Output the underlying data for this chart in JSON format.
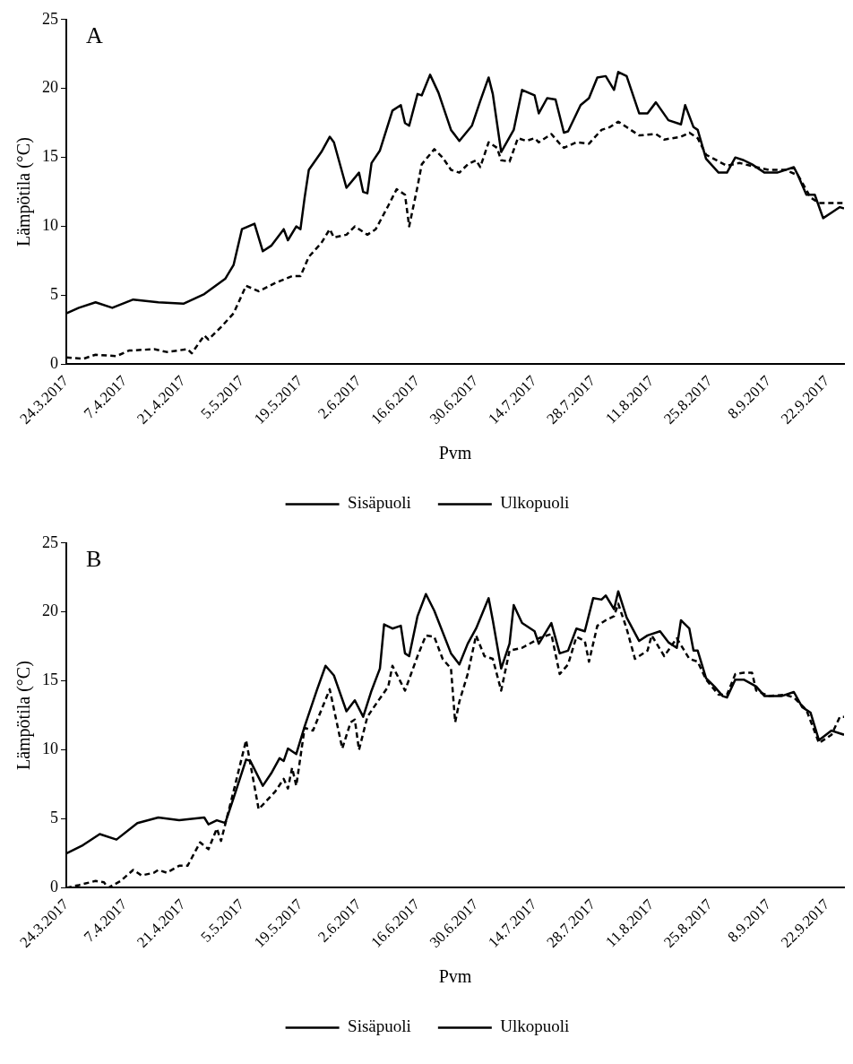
{
  "chart_data": [
    {
      "type": "line",
      "title": "A",
      "xlabel": "Pvm",
      "ylabel": "Lämpötila (°C)",
      "xlim": [
        "2017-03-24",
        "2017-09-26"
      ],
      "xticks": [
        {
          "value": "2017-03-24",
          "label": "24.3.2017"
        },
        {
          "value": "2017-04-07",
          "label": "7.4.2017"
        },
        {
          "value": "2017-04-21",
          "label": "21.4.2017"
        },
        {
          "value": "2017-05-05",
          "label": "5.5.2017"
        },
        {
          "value": "2017-05-19",
          "label": "19.5.2017"
        },
        {
          "value": "2017-06-02",
          "label": "2.6.2017"
        },
        {
          "value": "2017-06-16",
          "label": "16.6.2017"
        },
        {
          "value": "2017-06-30",
          "label": "30.6.2017"
        },
        {
          "value": "2017-07-14",
          "label": "14.7.2017"
        },
        {
          "value": "2017-07-28",
          "label": "28.7.2017"
        },
        {
          "value": "2017-08-11",
          "label": "11.8.2017"
        },
        {
          "value": "2017-08-25",
          "label": "25.8.2017"
        },
        {
          "value": "2017-09-08",
          "label": "8.9.2017"
        },
        {
          "value": "2017-09-22",
          "label": "22.9.2017"
        }
      ],
      "ylim": [
        0,
        25
      ],
      "yticks": [
        0,
        5,
        10,
        15,
        20,
        25
      ],
      "grid": false,
      "legend": "bottom",
      "series": [
        {
          "name": "Sisäpuoli",
          "color": "#000000",
          "line_style": "solid",
          "x": [
            "2017-03-24",
            "2017-03-27",
            "2017-03-31",
            "2017-04-04",
            "2017-04-09",
            "2017-04-15",
            "2017-04-21",
            "2017-04-26",
            "2017-05-01",
            "2017-05-03",
            "2017-05-05",
            "2017-05-08",
            "2017-05-10",
            "2017-05-12",
            "2017-05-15",
            "2017-05-16",
            "2017-05-18",
            "2017-05-19",
            "2017-05-20",
            "2017-05-21",
            "2017-05-24",
            "2017-05-26",
            "2017-05-27",
            "2017-05-30",
            "2017-06-02",
            "2017-06-03",
            "2017-06-04",
            "2017-06-05",
            "2017-06-07",
            "2017-06-10",
            "2017-06-12",
            "2017-06-13",
            "2017-06-14",
            "2017-06-16",
            "2017-06-17",
            "2017-06-19",
            "2017-06-21",
            "2017-06-24",
            "2017-06-26",
            "2017-06-29",
            "2017-07-01",
            "2017-07-03",
            "2017-07-04",
            "2017-07-06",
            "2017-07-09",
            "2017-07-11",
            "2017-07-14",
            "2017-07-15",
            "2017-07-17",
            "2017-07-19",
            "2017-07-21",
            "2017-07-22",
            "2017-07-25",
            "2017-07-27",
            "2017-07-29",
            "2017-07-31",
            "2017-08-02",
            "2017-08-03",
            "2017-08-05",
            "2017-08-08",
            "2017-08-10",
            "2017-08-12",
            "2017-08-15",
            "2017-08-18",
            "2017-08-19",
            "2017-08-21",
            "2017-08-22",
            "2017-08-24",
            "2017-08-27",
            "2017-08-29",
            "2017-08-31",
            "2017-09-02",
            "2017-09-04",
            "2017-09-07",
            "2017-09-10",
            "2017-09-14",
            "2017-09-15",
            "2017-09-17",
            "2017-09-19",
            "2017-09-21",
            "2017-09-23",
            "2017-09-25",
            "2017-09-26"
          ],
          "values": [
            3.7,
            4.1,
            4.5,
            4.1,
            4.7,
            4.5,
            4.4,
            5.1,
            6.2,
            7.2,
            9.8,
            10.2,
            8.2,
            8.6,
            9.8,
            9.0,
            10.0,
            9.8,
            12.1,
            14.1,
            15.4,
            16.5,
            16.1,
            12.8,
            13.9,
            12.5,
            12.4,
            14.6,
            15.5,
            18.4,
            18.8,
            17.5,
            17.3,
            19.6,
            19.5,
            21.0,
            19.7,
            17.0,
            16.2,
            17.3,
            19.1,
            20.8,
            19.6,
            15.4,
            17.0,
            19.9,
            19.5,
            18.2,
            19.3,
            19.2,
            16.8,
            16.9,
            18.8,
            19.3,
            20.8,
            20.9,
            19.9,
            21.2,
            20.9,
            18.2,
            18.2,
            19.0,
            17.7,
            17.4,
            18.8,
            17.2,
            17.0,
            14.9,
            13.9,
            13.9,
            15.0,
            14.8,
            14.5,
            13.9,
            13.9,
            14.3,
            13.7,
            12.3,
            12.3,
            10.6,
            11.0,
            11.4,
            11.3
          ]
        },
        {
          "name": "Ulkopuoli",
          "color": "#000000",
          "line_style": "dashed",
          "x": [
            "2017-03-24",
            "2017-03-28",
            "2017-03-31",
            "2017-04-05",
            "2017-04-08",
            "2017-04-14",
            "2017-04-17",
            "2017-04-22",
            "2017-04-23",
            "2017-04-26",
            "2017-04-27",
            "2017-04-30",
            "2017-05-03",
            "2017-05-06",
            "2017-05-09",
            "2017-05-13",
            "2017-05-17",
            "2017-05-19",
            "2017-05-21",
            "2017-05-24",
            "2017-05-26",
            "2017-05-27",
            "2017-05-30",
            "2017-06-01",
            "2017-06-04",
            "2017-06-06",
            "2017-06-09",
            "2017-06-11",
            "2017-06-13",
            "2017-06-14",
            "2017-06-16",
            "2017-06-17",
            "2017-06-20",
            "2017-06-22",
            "2017-06-24",
            "2017-06-26",
            "2017-06-28",
            "2017-06-30",
            "2017-07-01",
            "2017-07-03",
            "2017-07-05",
            "2017-07-06",
            "2017-07-08",
            "2017-07-10",
            "2017-07-12",
            "2017-07-14",
            "2017-07-15",
            "2017-07-18",
            "2017-07-20",
            "2017-07-21",
            "2017-07-24",
            "2017-07-27",
            "2017-07-30",
            "2017-08-01",
            "2017-08-03",
            "2017-08-05",
            "2017-08-08",
            "2017-08-12",
            "2017-08-14",
            "2017-08-18",
            "2017-08-20",
            "2017-08-22",
            "2017-08-24",
            "2017-08-29",
            "2017-09-01",
            "2017-09-05",
            "2017-09-08",
            "2017-09-12",
            "2017-09-15",
            "2017-09-18",
            "2017-09-20",
            "2017-09-26"
          ],
          "values": [
            0.5,
            0.4,
            0.7,
            0.6,
            1.0,
            1.1,
            0.9,
            1.1,
            0.8,
            2.1,
            1.8,
            2.7,
            3.7,
            5.7,
            5.3,
            5.9,
            6.4,
            6.4,
            7.8,
            8.8,
            9.8,
            9.2,
            9.4,
            10.0,
            9.4,
            9.8,
            11.5,
            12.7,
            12.3,
            10.0,
            12.9,
            14.5,
            15.6,
            15.0,
            14.1,
            13.9,
            14.5,
            14.8,
            14.3,
            16.1,
            15.7,
            14.8,
            14.7,
            16.4,
            16.2,
            16.4,
            16.1,
            16.7,
            16.0,
            15.7,
            16.1,
            16.0,
            17.0,
            17.2,
            17.6,
            17.2,
            16.6,
            16.7,
            16.3,
            16.5,
            16.8,
            16.4,
            15.2,
            14.4,
            14.6,
            14.3,
            14.1,
            14.1,
            13.7,
            12.1,
            11.7,
            11.7
          ]
        }
      ]
    },
    {
      "type": "line",
      "title": "B",
      "xlabel": "Pvm",
      "ylabel": "Lämpötila (°C)",
      "xlim": [
        "2017-03-24",
        "2017-09-26"
      ],
      "xticks": [
        {
          "value": "2017-03-24",
          "label": "24.3.2017"
        },
        {
          "value": "2017-04-07",
          "label": "7.4.2017"
        },
        {
          "value": "2017-04-21",
          "label": "21.4.2017"
        },
        {
          "value": "2017-05-05",
          "label": "5.5.2017"
        },
        {
          "value": "2017-05-19",
          "label": "19.5.2017"
        },
        {
          "value": "2017-06-02",
          "label": "2.6.2017"
        },
        {
          "value": "2017-06-16",
          "label": "16.6.2017"
        },
        {
          "value": "2017-06-30",
          "label": "30.6.2017"
        },
        {
          "value": "2017-07-14",
          "label": "14.7.2017"
        },
        {
          "value": "2017-07-28",
          "label": "28.7.2017"
        },
        {
          "value": "2017-08-11",
          "label": "11.8.2017"
        },
        {
          "value": "2017-08-25",
          "label": "25.8.2017"
        },
        {
          "value": "2017-09-08",
          "label": "8.9.2017"
        },
        {
          "value": "2017-09-22",
          "label": "22.9.2017"
        }
      ],
      "ylim": [
        0,
        25
      ],
      "yticks": [
        0,
        5,
        10,
        15,
        20,
        25
      ],
      "grid": false,
      "legend": "bottom",
      "series": [
        {
          "name": "Sisäpuoli",
          "color": "#000000",
          "line_style": "solid",
          "x": [
            "2017-03-24",
            "2017-03-28",
            "2017-04-01",
            "2017-04-05",
            "2017-04-10",
            "2017-04-15",
            "2017-04-20",
            "2017-04-26",
            "2017-04-27",
            "2017-04-29",
            "2017-05-01",
            "2017-05-03",
            "2017-05-06",
            "2017-05-07",
            "2017-05-10",
            "2017-05-12",
            "2017-05-14",
            "2017-05-15",
            "2017-05-16",
            "2017-05-18",
            "2017-05-20",
            "2017-05-23",
            "2017-05-25",
            "2017-05-27",
            "2017-05-30",
            "2017-06-01",
            "2017-06-03",
            "2017-06-05",
            "2017-06-07",
            "2017-06-08",
            "2017-06-10",
            "2017-06-12",
            "2017-06-13",
            "2017-06-14",
            "2017-06-16",
            "2017-06-18",
            "2017-06-20",
            "2017-06-24",
            "2017-06-26",
            "2017-06-28",
            "2017-06-30",
            "2017-07-03",
            "2017-07-04",
            "2017-07-06",
            "2017-07-08",
            "2017-07-09",
            "2017-07-11",
            "2017-07-14",
            "2017-07-15",
            "2017-07-18",
            "2017-07-20",
            "2017-07-22",
            "2017-07-24",
            "2017-07-26",
            "2017-07-28",
            "2017-07-30",
            "2017-07-31",
            "2017-08-02",
            "2017-08-03",
            "2017-08-05",
            "2017-08-08",
            "2017-08-10",
            "2017-08-13",
            "2017-08-15",
            "2017-08-17",
            "2017-08-18",
            "2017-08-20",
            "2017-08-21",
            "2017-08-22",
            "2017-08-24",
            "2017-08-26",
            "2017-08-28",
            "2017-08-29",
            "2017-08-31",
            "2017-09-02",
            "2017-09-05",
            "2017-09-07",
            "2017-09-11",
            "2017-09-14",
            "2017-09-16",
            "2017-09-18",
            "2017-09-20",
            "2017-09-23",
            "2017-09-26"
          ],
          "values": [
            2.5,
            3.1,
            3.9,
            3.5,
            4.7,
            5.1,
            4.9,
            5.1,
            4.6,
            4.9,
            4.7,
            6.5,
            9.3,
            9.2,
            7.4,
            8.3,
            9.4,
            9.2,
            10.1,
            9.7,
            11.7,
            14.4,
            16.1,
            15.4,
            12.8,
            13.6,
            12.4,
            14.3,
            15.9,
            19.1,
            18.8,
            19.0,
            17.0,
            16.8,
            19.7,
            21.3,
            20.1,
            17.0,
            16.2,
            17.7,
            18.8,
            21.0,
            19.4,
            15.9,
            17.7,
            20.5,
            19.2,
            18.6,
            17.7,
            19.2,
            17.0,
            17.2,
            18.8,
            18.6,
            21.0,
            20.9,
            21.2,
            20.2,
            21.5,
            19.6,
            17.9,
            18.3,
            18.6,
            17.8,
            17.4,
            19.4,
            18.8,
            17.2,
            17.2,
            15.2,
            14.6,
            13.9,
            13.8,
            15.1,
            15.1,
            14.6,
            13.9,
            13.9,
            14.2,
            13.1,
            12.7,
            10.7,
            11.4,
            11.1
          ]
        },
        {
          "name": "Ulkopuoli",
          "color": "#000000",
          "line_style": "dashed",
          "x": [
            "2017-03-24",
            "2017-03-27",
            "2017-03-31",
            "2017-04-02",
            "2017-04-03",
            "2017-04-06",
            "2017-04-09",
            "2017-04-11",
            "2017-04-14",
            "2017-04-15",
            "2017-04-17",
            "2017-04-20",
            "2017-04-22",
            "2017-04-25",
            "2017-04-27",
            "2017-04-29",
            "2017-04-30",
            "2017-05-03",
            "2017-05-06",
            "2017-05-09",
            "2017-05-13",
            "2017-05-15",
            "2017-05-16",
            "2017-05-17",
            "2017-05-18",
            "2017-05-20",
            "2017-05-22",
            "2017-05-24",
            "2017-05-26",
            "2017-05-29",
            "2017-05-31",
            "2017-06-01",
            "2017-06-02",
            "2017-06-04",
            "2017-06-06",
            "2017-06-09",
            "2017-06-10",
            "2017-06-13",
            "2017-06-16",
            "2017-06-18",
            "2017-06-20",
            "2017-06-22",
            "2017-06-24",
            "2017-06-25",
            "2017-06-26",
            "2017-06-28",
            "2017-06-30",
            "2017-07-02",
            "2017-07-04",
            "2017-07-06",
            "2017-07-08",
            "2017-07-11",
            "2017-07-14",
            "2017-07-15",
            "2017-07-18",
            "2017-07-20",
            "2017-07-22",
            "2017-07-24",
            "2017-07-26",
            "2017-07-27",
            "2017-07-29",
            "2017-07-31",
            "2017-08-02",
            "2017-08-03",
            "2017-08-05",
            "2017-08-07",
            "2017-08-10",
            "2017-08-11",
            "2017-08-14",
            "2017-08-17",
            "2017-08-20",
            "2017-08-22",
            "2017-08-24",
            "2017-08-27",
            "2017-08-29",
            "2017-08-31",
            "2017-09-02",
            "2017-09-04",
            "2017-09-05",
            "2017-09-08",
            "2017-09-12",
            "2017-09-14",
            "2017-09-17",
            "2017-09-20",
            "2017-09-23",
            "2017-09-25",
            "2017-09-26"
          ],
          "values": [
            0.0,
            0.2,
            0.5,
            0.4,
            0.0,
            0.5,
            1.3,
            0.9,
            1.1,
            1.3,
            1.1,
            1.6,
            1.6,
            3.3,
            2.8,
            4.3,
            3.4,
            7.0,
            10.7,
            5.7,
            7.0,
            7.9,
            7.2,
            8.7,
            7.4,
            11.6,
            11.4,
            12.9,
            14.4,
            10.1,
            12.0,
            12.2,
            10.0,
            12.4,
            13.3,
            14.6,
            16.1,
            14.3,
            16.8,
            18.3,
            18.2,
            16.6,
            15.9,
            12.0,
            13.5,
            15.5,
            18.3,
            16.8,
            16.6,
            14.3,
            17.2,
            17.4,
            17.9,
            18.1,
            18.4,
            15.5,
            16.2,
            18.2,
            17.9,
            16.4,
            19.0,
            19.4,
            19.7,
            20.6,
            18.8,
            16.6,
            17.2,
            18.3,
            16.8,
            18.1,
            16.6,
            16.4,
            15.1,
            14.0,
            14.0,
            15.5,
            15.6,
            15.6,
            14.3,
            13.9,
            14.0,
            13.8,
            12.9,
            10.5,
            11.1,
            12.4,
            12.4
          ]
        }
      ]
    }
  ]
}
